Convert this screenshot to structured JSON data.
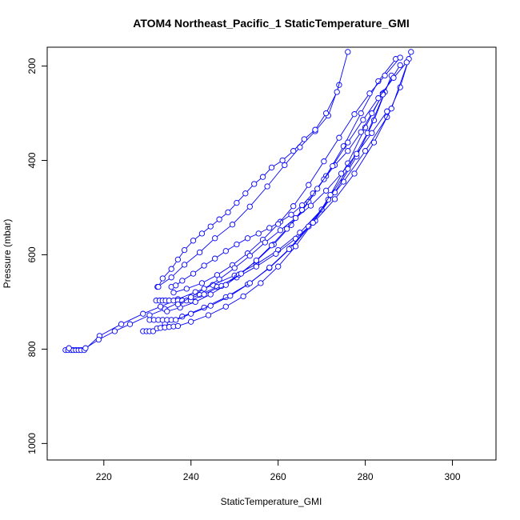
{
  "chart_data": {
    "type": "line",
    "title": "ATOM4 Northeast_Pacific_1 StaticTemperature_GMI",
    "xlabel": "StaticTemperature_GMI",
    "ylabel": "Pressure (mbar)",
    "xlim": [
      207,
      310
    ],
    "ylim": [
      1035,
      160
    ],
    "y_reversed": true,
    "x_ticks": [
      220,
      240,
      260,
      280,
      300
    ],
    "y_ticks": [
      200,
      400,
      600,
      800,
      1000
    ],
    "series_color": "#0000ff",
    "marker": "open-circle",
    "series": [
      {
        "x": [
          211.2,
          211.8,
          212.5,
          213.0,
          213.6,
          214.2,
          214.8,
          215.5,
          219.0,
          224.0,
          229.0,
          233.0,
          237.0,
          241.0,
          245.0,
          250.0,
          255.0,
          260.0,
          265.0,
          270.0,
          275.0,
          280.0,
          285.0,
          288.0,
          290.5
        ],
        "y": [
          802,
          802,
          802,
          802,
          802,
          802,
          802,
          802,
          772,
          747,
          725,
          710,
          694,
          679,
          664,
          644,
          620,
          590,
          553,
          504,
          445,
          380,
          308,
          245,
          170
        ]
      },
      {
        "x": [
          212.0,
          215.8,
          218.8,
          222.5,
          226.0,
          230.5,
          234.0,
          237.5,
          242.0,
          246.0,
          250.5,
          255.0,
          259.5,
          264.0,
          268.5,
          273.0,
          277.5,
          282.0,
          286.0,
          290.0
        ],
        "y": [
          798,
          798,
          780,
          762,
          747,
          728,
          715,
          700,
          685,
          668,
          648,
          625,
          598,
          566,
          528,
          482,
          428,
          362,
          290,
          185
        ]
      },
      {
        "x": [
          229.0,
          229.8,
          230.5,
          231.3,
          234.0,
          238.0,
          243.0,
          248.0,
          253.0,
          258.0,
          263.0,
          268.0,
          273.0,
          278.0,
          282.0,
          286.0
        ],
        "y": [
          762,
          762,
          762,
          762,
          746,
          731,
          712,
          690,
          663,
          628,
          585,
          532,
          468,
          392,
          315,
          220
        ]
      },
      {
        "x": [
          230.5,
          231.5,
          232.5,
          233.5,
          234.5,
          235.5,
          236.5,
          240.0,
          244.5,
          249.0,
          253.5,
          258.0,
          262.5,
          267.0,
          271.5,
          276.0,
          280.5,
          284.5
        ],
        "y": [
          738,
          738,
          738,
          738,
          738,
          738,
          738,
          725,
          708,
          687,
          660,
          627,
          588,
          540,
          483,
          418,
          342,
          255
        ]
      },
      {
        "x": [
          232.0,
          232.8,
          233.5,
          234.2,
          235.0,
          236.0,
          237.0,
          238.0,
          239.0,
          240.0,
          243.0,
          247.0,
          251.0,
          255.0,
          259.0,
          263.0,
          267.0,
          271.0,
          275.0,
          279.0,
          283.0,
          287.0
        ],
        "y": [
          697,
          697,
          697,
          697,
          697,
          697,
          697,
          697,
          697,
          697,
          684,
          666,
          642,
          613,
          578,
          537,
          488,
          433,
          370,
          300,
          232,
          185
        ]
      },
      {
        "x": [
          232.3,
          235.5,
          238.5,
          242.0,
          245.5,
          249.5,
          253.5,
          257.5,
          261.5,
          265.0,
          268.5,
          271.5,
          274.0
        ],
        "y": [
          668,
          648,
          621,
          595,
          565,
          536,
          498,
          455,
          410,
          372,
          338,
          305,
          240
        ]
      },
      {
        "x": [
          232.5,
          233.5,
          235.5,
          237.0,
          238.5,
          240.5,
          242.5,
          244.5,
          246.5,
          248.5,
          250.5,
          252.5,
          254.5,
          256.5,
          258.5,
          261.0,
          263.5,
          266.0,
          268.5,
          271.0,
          273.5,
          276.0
        ],
        "y": [
          668,
          650,
          630,
          610,
          590,
          570,
          555,
          540,
          525,
          510,
          490,
          470,
          450,
          435,
          415,
          400,
          380,
          355,
          335,
          300,
          255,
          170
        ]
      },
      {
        "x": [
          232.2,
          233.0,
          234.0,
          235.0,
          236.0,
          237.0,
          240.0,
          244.0,
          248.0,
          252.0,
          256.0,
          260.0,
          264.0,
          268.0,
          272.0,
          276.0,
          280.0,
          284.0,
          288.0
        ],
        "y": [
          756,
          755,
          754,
          753,
          752,
          751,
          742,
          728,
          710,
          688,
          660,
          625,
          582,
          532,
          473,
          406,
          330,
          258,
          198
        ]
      },
      {
        "x": [
          235.5,
          236.5,
          238.0,
          240.5,
          243.0,
          245.5,
          248.0,
          250.5,
          253.0,
          255.5,
          258.0,
          260.5,
          263.0,
          265.5,
          268.0,
          270.5,
          273.0,
          276.0,
          279.0,
          281.5,
          284.0
        ],
        "y": [
          668,
          665,
          655,
          640,
          623,
          608,
          592,
          578,
          565,
          555,
          543,
          530,
          515,
          495,
          470,
          440,
          410,
          380,
          340,
          300,
          260
        ]
      },
      {
        "x": [
          236.0,
          239.0,
          242.5,
          246.0,
          249.5,
          253.0,
          256.5,
          260.0,
          263.5,
          267.0,
          270.5,
          274.0,
          277.5,
          281.0,
          284.5,
          288.0
        ],
        "y": [
          680,
          672,
          660,
          643,
          622,
          597,
          568,
          535,
          497,
          452,
          402,
          352,
          302,
          258,
          220,
          182
        ]
      },
      {
        "x": [
          234.5,
          237.5,
          241.0,
          244.5,
          248.0,
          251.5,
          255.0,
          258.5,
          262.0,
          265.5,
          269.0,
          272.5,
          276.0,
          279.5,
          283.0,
          286.5,
          289.5
        ],
        "y": [
          720,
          712,
          700,
          684,
          664,
          640,
          612,
          580,
          545,
          505,
          460,
          412,
          362,
          314,
          268,
          225,
          192
        ]
      },
      {
        "x": [
          237.0,
          240.0,
          243.0,
          246.5,
          250.0,
          253.5,
          257.0,
          260.5,
          264.0,
          267.5,
          271.0,
          274.5,
          278.0,
          281.5,
          285.0
        ],
        "y": [
          705,
          690,
          672,
          652,
          628,
          602,
          574,
          548,
          522,
          496,
          464,
          428,
          386,
          342,
          296
        ]
      }
    ]
  }
}
